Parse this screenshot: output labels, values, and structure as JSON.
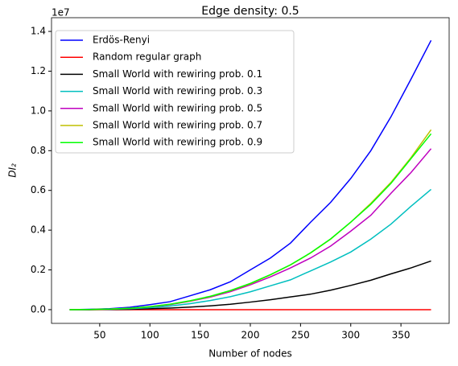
{
  "chart_data": {
    "type": "line",
    "title": "Edge density: 0.5",
    "xlabel": "Number of nodes",
    "ylabel": "DI₂",
    "offset_text": "1e7",
    "x": [
      20,
      40,
      60,
      80,
      100,
      120,
      140,
      160,
      180,
      200,
      220,
      240,
      260,
      280,
      300,
      320,
      340,
      360,
      380
    ],
    "series": [
      {
        "name": "Erdös-Renyi",
        "color": "#0000ff",
        "values": [
          0,
          0.002,
          0.005,
          0.012,
          0.025,
          0.04,
          0.07,
          0.1,
          0.14,
          0.2,
          0.26,
          0.335,
          0.44,
          0.54,
          0.66,
          0.8,
          0.97,
          1.16,
          1.355
        ]
      },
      {
        "name": "Random regular graph",
        "color": "#ff0000",
        "values": [
          0,
          0,
          0,
          0,
          0,
          0,
          0,
          0,
          0,
          0,
          0,
          0,
          0,
          0,
          0,
          0,
          0,
          0,
          0
        ]
      },
      {
        "name": "Small World with rewiring prob. 0.1",
        "color": "#000000",
        "values": [
          0,
          0,
          0.001,
          0.002,
          0.005,
          0.008,
          0.013,
          0.019,
          0.027,
          0.038,
          0.05,
          0.064,
          0.078,
          0.098,
          0.122,
          0.148,
          0.18,
          0.21,
          0.245
        ]
      },
      {
        "name": "Small World with rewiring prob. 0.3",
        "color": "#00bfbf",
        "values": [
          0,
          0.001,
          0.002,
          0.005,
          0.01,
          0.018,
          0.03,
          0.046,
          0.065,
          0.09,
          0.12,
          0.15,
          0.195,
          0.24,
          0.29,
          0.355,
          0.43,
          0.52,
          0.605
        ]
      },
      {
        "name": "Small World with rewiring prob. 0.5",
        "color": "#bf00bf",
        "values": [
          0,
          0.001,
          0.003,
          0.007,
          0.014,
          0.025,
          0.042,
          0.063,
          0.09,
          0.125,
          0.165,
          0.21,
          0.26,
          0.32,
          0.395,
          0.475,
          0.585,
          0.69,
          0.81
        ]
      },
      {
        "name": "Small World with rewiring prob. 0.7",
        "color": "#bfbf00",
        "values": [
          0,
          0.001,
          0.003,
          0.007,
          0.015,
          0.027,
          0.044,
          0.066,
          0.095,
          0.13,
          0.175,
          0.225,
          0.285,
          0.355,
          0.44,
          0.535,
          0.64,
          0.765,
          0.905
        ]
      },
      {
        "name": "Small World with rewiring prob. 0.9",
        "color": "#00ff00",
        "values": [
          0,
          0.001,
          0.003,
          0.007,
          0.015,
          0.027,
          0.045,
          0.067,
          0.096,
          0.132,
          0.176,
          0.226,
          0.286,
          0.356,
          0.44,
          0.53,
          0.635,
          0.76,
          0.885
        ]
      }
    ],
    "xlim": [
      2,
      398
    ],
    "xticks": [
      50,
      100,
      150,
      200,
      250,
      300,
      350
    ],
    "ylim": [
      -0.069,
      1.469
    ],
    "yticks": [
      {
        "value": 0,
        "label": "0.0"
      },
      0.2,
      0.4,
      0.6,
      0.8,
      {
        "value": 1,
        "label": "1.0"
      },
      1.2,
      1.4
    ],
    "legend": "upper left"
  }
}
